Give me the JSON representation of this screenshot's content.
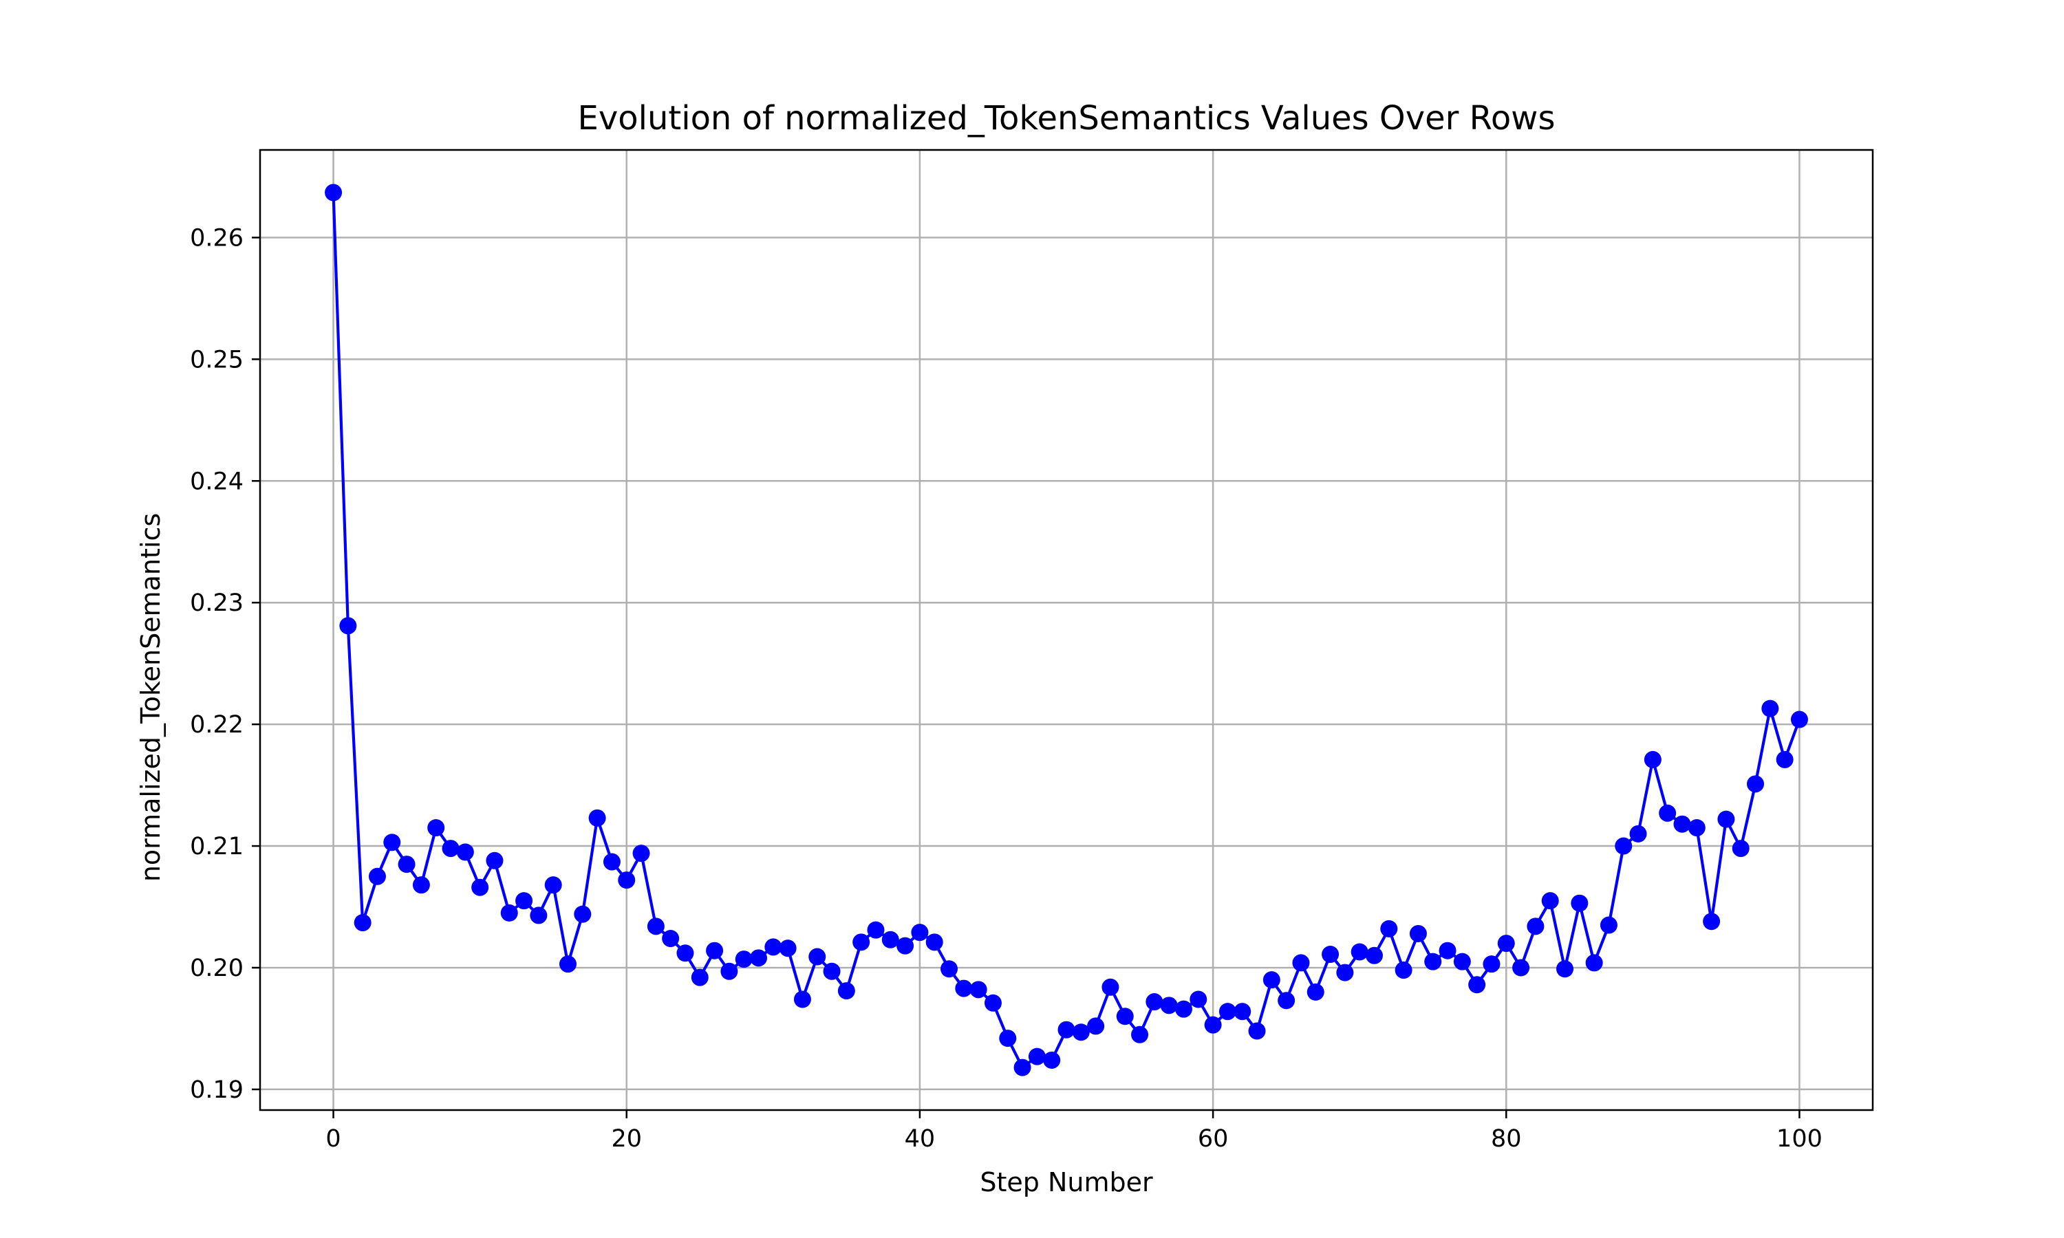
{
  "chart_data": {
    "type": "line",
    "title": "Evolution of normalized_TokenSemantics Values Over Rows",
    "xlabel": "Step Number",
    "ylabel": "normalized_TokenSemantics",
    "xlim": [
      -5,
      105
    ],
    "ylim": [
      0.1883,
      0.2672
    ],
    "xticks": [
      0,
      20,
      40,
      60,
      80,
      100
    ],
    "yticks": [
      0.19,
      0.2,
      0.21,
      0.22,
      0.23,
      0.24,
      0.25,
      0.26
    ],
    "ytick_labels": [
      "0.19",
      "0.20",
      "0.21",
      "0.22",
      "0.23",
      "0.24",
      "0.25",
      "0.26"
    ],
    "grid": true,
    "color": "#0000ff",
    "marker": "circle",
    "series": [
      {
        "x": [
          0,
          1,
          2,
          3,
          4,
          5,
          6,
          7,
          8,
          9,
          10,
          11,
          12,
          13,
          14,
          15,
          16,
          17,
          18,
          19,
          20,
          21,
          22,
          23,
          24,
          25,
          26,
          27,
          28,
          29,
          30,
          31,
          32,
          33,
          34,
          35,
          36,
          37,
          38,
          39,
          40,
          41,
          42,
          43,
          44,
          45,
          46,
          47,
          48,
          49,
          50,
          51,
          52,
          53,
          54,
          55,
          56,
          57,
          58,
          59,
          60,
          61,
          62,
          63,
          64,
          65,
          66,
          67,
          68,
          69,
          70,
          71,
          72,
          73,
          74,
          75,
          76,
          77,
          78,
          79,
          80,
          81,
          82,
          83,
          84,
          85,
          86,
          87,
          88,
          89,
          90,
          91,
          92,
          93,
          94,
          95,
          96,
          97,
          98,
          99,
          100
        ],
        "values": [
          0.2637,
          0.2281,
          0.2037,
          0.2075,
          0.2103,
          0.2085,
          0.2068,
          0.2115,
          0.2098,
          0.2095,
          0.2066,
          0.2088,
          0.2045,
          0.2055,
          0.2043,
          0.2068,
          0.2003,
          0.2044,
          0.2123,
          0.2087,
          0.2072,
          0.2094,
          0.2034,
          0.2024,
          0.2012,
          0.1992,
          0.2014,
          0.1997,
          0.2007,
          0.2008,
          0.2017,
          0.2016,
          0.1974,
          0.2009,
          0.1997,
          0.1981,
          0.2021,
          0.2031,
          0.2023,
          0.2018,
          0.2029,
          0.2021,
          0.1999,
          0.1983,
          0.1982,
          0.1971,
          0.1942,
          0.1918,
          0.1927,
          0.1924,
          0.1949,
          0.1947,
          0.1952,
          0.1984,
          0.196,
          0.1945,
          0.1972,
          0.1969,
          0.1966,
          0.1974,
          0.1953,
          0.1964,
          0.1964,
          0.1948,
          0.199,
          0.1973,
          0.2004,
          0.198,
          0.2011,
          0.1996,
          0.2013,
          0.201,
          0.2032,
          0.1998,
          0.2028,
          0.2005,
          0.2014,
          0.2005,
          0.1986,
          0.2003,
          0.202,
          0.2,
          0.2034,
          0.2055,
          0.1999,
          0.2053,
          0.2004,
          0.2035,
          0.21,
          0.211,
          0.2171,
          0.2127,
          0.2118,
          0.2115,
          0.2038,
          0.2122,
          0.2098,
          0.2151,
          0.2213,
          0.2171,
          0.2204
        ]
      }
    ]
  }
}
